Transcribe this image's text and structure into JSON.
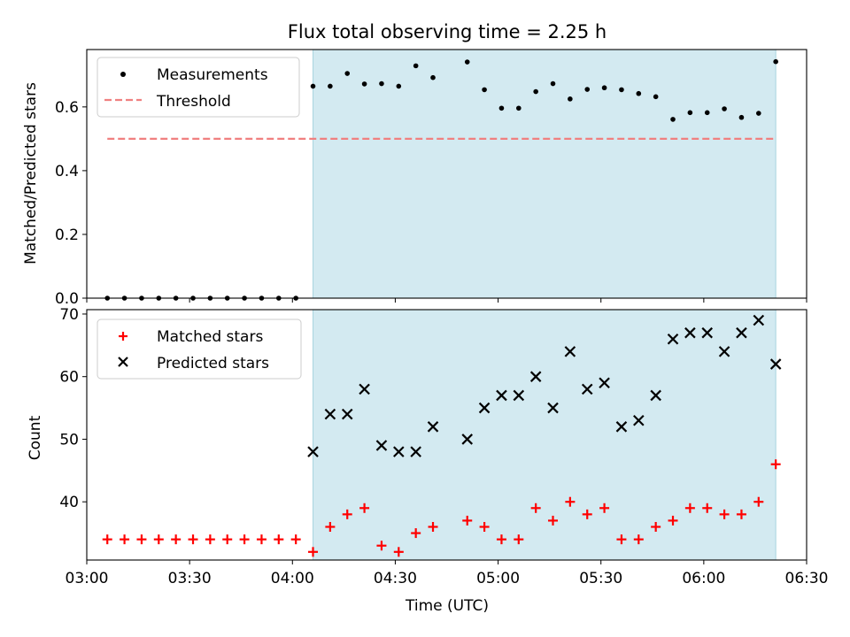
{
  "chart_data": [
    {
      "type": "scatter",
      "title": "Flux total observing time = 2.25 h",
      "xlabel": "",
      "ylabel": "Matched/Predicted stars",
      "xlim": [
        "03:00",
        "06:30"
      ],
      "ylim": [
        0.0,
        0.78
      ],
      "yticks": [
        "0.0",
        "0.2",
        "0.4",
        "0.6"
      ],
      "legend_position": "upper-left",
      "shaded_interval": {
        "start": "04:06",
        "end": "06:21",
        "color": "#d3eaf1"
      },
      "threshold": {
        "name": "Threshold",
        "value": 0.5,
        "start": "03:06",
        "end": "06:21",
        "color": "#f08080",
        "style": "dashed"
      },
      "series": [
        {
          "name": "Measurements",
          "marker": "dot",
          "color": "#000000",
          "points": [
            [
              "03:06",
              0.0
            ],
            [
              "03:11",
              0.0
            ],
            [
              "03:16",
              0.0
            ],
            [
              "03:21",
              0.0
            ],
            [
              "03:26",
              0.0
            ],
            [
              "03:31",
              0.0
            ],
            [
              "03:36",
              0.0
            ],
            [
              "03:41",
              0.0
            ],
            [
              "03:46",
              0.0
            ],
            [
              "03:51",
              0.0
            ],
            [
              "03:56",
              0.0
            ],
            [
              "04:01",
              0.0
            ],
            [
              "04:06",
              0.665
            ],
            [
              "04:11",
              0.665
            ],
            [
              "04:16",
              0.705
            ],
            [
              "04:21",
              0.672
            ],
            [
              "04:26",
              0.673
            ],
            [
              "04:31",
              0.665
            ],
            [
              "04:36",
              0.729
            ],
            [
              "04:41",
              0.692
            ],
            [
              "04:51",
              0.741
            ],
            [
              "04:56",
              0.654
            ],
            [
              "05:01",
              0.596
            ],
            [
              "05:06",
              0.596
            ],
            [
              "05:11",
              0.648
            ],
            [
              "05:16",
              0.673
            ],
            [
              "05:21",
              0.625
            ],
            [
              "05:26",
              0.655
            ],
            [
              "05:31",
              0.66
            ],
            [
              "05:36",
              0.654
            ],
            [
              "05:41",
              0.642
            ],
            [
              "05:46",
              0.632
            ],
            [
              "05:51",
              0.561
            ],
            [
              "05:56",
              0.582
            ],
            [
              "06:01",
              0.582
            ],
            [
              "06:06",
              0.594
            ],
            [
              "06:11",
              0.567
            ],
            [
              "06:16",
              0.58
            ],
            [
              "06:21",
              0.742
            ]
          ]
        }
      ]
    },
    {
      "type": "scatter",
      "title": "",
      "xlabel": "Time (UTC)",
      "ylabel": "Count",
      "xlim": [
        "03:00",
        "06:30"
      ],
      "xticks": [
        "03:00",
        "03:30",
        "04:00",
        "04:30",
        "05:00",
        "05:30",
        "06:00",
        "06:30"
      ],
      "ylim": [
        30.7,
        70.7
      ],
      "yticks": [
        "40",
        "50",
        "60",
        "70"
      ],
      "legend_position": "upper-left",
      "shaded_interval": {
        "start": "04:06",
        "end": "06:21",
        "color": "#d3eaf1"
      },
      "series": [
        {
          "name": "Matched stars",
          "marker": "plus",
          "color": "#ff0000",
          "points": [
            [
              "03:06",
              34
            ],
            [
              "03:11",
              34
            ],
            [
              "03:16",
              34
            ],
            [
              "03:21",
              34
            ],
            [
              "03:26",
              34
            ],
            [
              "03:31",
              34
            ],
            [
              "03:36",
              34
            ],
            [
              "03:41",
              34
            ],
            [
              "03:46",
              34
            ],
            [
              "03:51",
              34
            ],
            [
              "03:56",
              34
            ],
            [
              "04:01",
              34
            ],
            [
              "04:06",
              32
            ],
            [
              "04:11",
              36
            ],
            [
              "04:16",
              38
            ],
            [
              "04:21",
              39
            ],
            [
              "04:26",
              33
            ],
            [
              "04:31",
              32
            ],
            [
              "04:36",
              35
            ],
            [
              "04:41",
              36
            ],
            [
              "04:51",
              37
            ],
            [
              "04:56",
              36
            ],
            [
              "05:01",
              34
            ],
            [
              "05:06",
              34
            ],
            [
              "05:11",
              39
            ],
            [
              "05:16",
              37
            ],
            [
              "05:21",
              40
            ],
            [
              "05:26",
              38
            ],
            [
              "05:31",
              39
            ],
            [
              "05:36",
              34
            ],
            [
              "05:41",
              34
            ],
            [
              "05:46",
              36
            ],
            [
              "05:51",
              37
            ],
            [
              "05:56",
              39
            ],
            [
              "06:01",
              39
            ],
            [
              "06:06",
              38
            ],
            [
              "06:11",
              38
            ],
            [
              "06:16",
              40
            ],
            [
              "06:21",
              46
            ]
          ]
        },
        {
          "name": "Predicted stars",
          "marker": "x",
          "color": "#000000",
          "points": [
            [
              "04:06",
              48
            ],
            [
              "04:11",
              54
            ],
            [
              "04:16",
              54
            ],
            [
              "04:21",
              58
            ],
            [
              "04:26",
              49
            ],
            [
              "04:31",
              48
            ],
            [
              "04:36",
              48
            ],
            [
              "04:41",
              52
            ],
            [
              "04:51",
              50
            ],
            [
              "04:56",
              55
            ],
            [
              "05:01",
              57
            ],
            [
              "05:06",
              57
            ],
            [
              "05:11",
              60
            ],
            [
              "05:16",
              55
            ],
            [
              "05:21",
              64
            ],
            [
              "05:26",
              58
            ],
            [
              "05:31",
              59
            ],
            [
              "05:36",
              52
            ],
            [
              "05:41",
              53
            ],
            [
              "05:46",
              57
            ],
            [
              "05:51",
              66
            ],
            [
              "05:56",
              67
            ],
            [
              "06:01",
              67
            ],
            [
              "06:06",
              64
            ],
            [
              "06:11",
              67
            ],
            [
              "06:16",
              69
            ],
            [
              "06:21",
              62
            ]
          ]
        }
      ]
    }
  ]
}
